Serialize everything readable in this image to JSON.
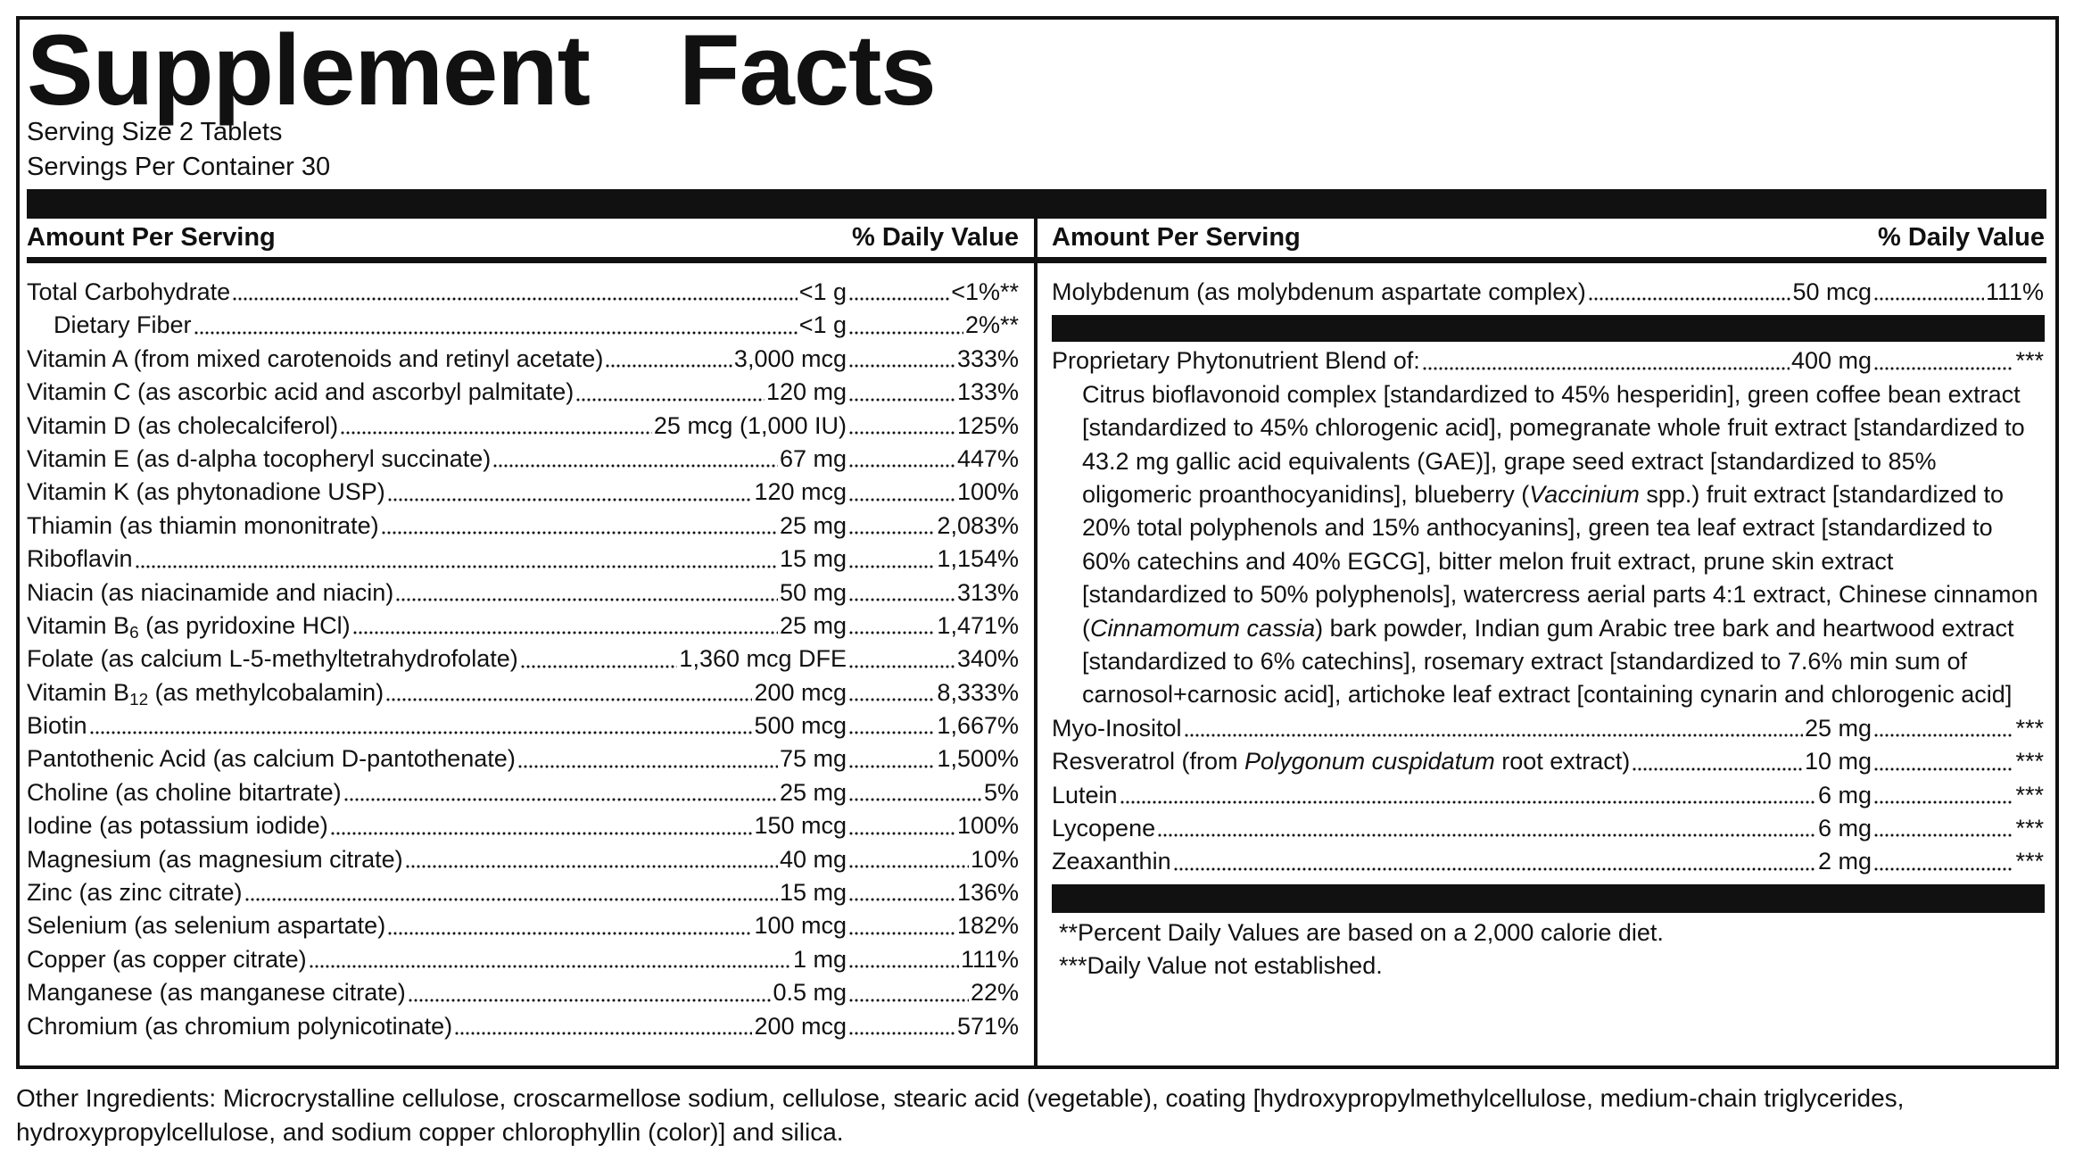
{
  "header": {
    "title": "Supplement Facts",
    "serving_size": "Serving Size 2 Tablets",
    "servings_per_container": "Servings Per Container 30"
  },
  "left": {
    "amount_label": "Amount Per Serving",
    "dv_label": "% Daily Value",
    "rows": [
      {
        "name": [
          "Total Carbohydrate"
        ],
        "amount": "<1 g",
        "dv": "<1%**"
      },
      {
        "name": [
          "Dietary Fiber"
        ],
        "amount": "<1 g",
        "dv": "2%**",
        "indent": true
      },
      {
        "name": [
          "Vitamin A (from mixed carotenoids and retinyl acetate)"
        ],
        "amount": "3,000 mcg",
        "dv": "333%"
      },
      {
        "name": [
          "Vitamin C (as ascorbic acid and ascorbyl palmitate)"
        ],
        "amount": "120 mg",
        "dv": "133%"
      },
      {
        "name": [
          "Vitamin D (as cholecalciferol)"
        ],
        "amount": "25 mcg (1,000 IU)",
        "dv": "125%"
      },
      {
        "name": [
          "Vitamin E (as d-alpha tocopheryl succinate)"
        ],
        "amount": "67 mg",
        "dv": "447%"
      },
      {
        "name": [
          "Vitamin K (as phytonadione USP)"
        ],
        "amount": "120 mcg",
        "dv": "100%"
      },
      {
        "name": [
          "Thiamin (as thiamin mononitrate)"
        ],
        "amount": "25 mg",
        "dv": "2,083%"
      },
      {
        "name": [
          "Riboflavin"
        ],
        "amount": "15 mg",
        "dv": "1,154%"
      },
      {
        "name": [
          "Niacin (as niacinamide and niacin)"
        ],
        "amount": "50 mg",
        "dv": "313%"
      },
      {
        "name": [
          "Vitamin B",
          {
            "text": "6",
            "style": "sub"
          },
          " (as pyridoxine HCl)"
        ],
        "amount": "25 mg",
        "dv": "1,471%"
      },
      {
        "name": [
          "Folate (as calcium L-5-methyltetrahydrofolate)"
        ],
        "amount": "1,360 mcg DFE",
        "dv": "340%"
      },
      {
        "name": [
          "Vitamin B",
          {
            "text": "12",
            "style": "sub"
          },
          " (as methylcobalamin)"
        ],
        "amount": "200 mcg",
        "dv": "8,333%"
      },
      {
        "name": [
          "Biotin"
        ],
        "amount": "500 mcg",
        "dv": "1,667%"
      },
      {
        "name": [
          "Pantothenic Acid (as calcium D-pantothenate)"
        ],
        "amount": "75 mg",
        "dv": "1,500%"
      },
      {
        "name": [
          "Choline (as choline bitartrate)"
        ],
        "amount": "25 mg",
        "dv": "5%"
      },
      {
        "name": [
          "Iodine (as potassium iodide)"
        ],
        "amount": "150 mcg",
        "dv": "100%"
      },
      {
        "name": [
          "Magnesium (as magnesium citrate)"
        ],
        "amount": "40 mg",
        "dv": "10%"
      },
      {
        "name": [
          "Zinc (as zinc citrate)"
        ],
        "amount": "15 mg",
        "dv": "136%"
      },
      {
        "name": [
          "Selenium (as selenium aspartate)"
        ],
        "amount": "100 mcg",
        "dv": "182%"
      },
      {
        "name": [
          "Copper (as copper citrate)"
        ],
        "amount": "1 mg",
        "dv": "111%"
      },
      {
        "name": [
          "Manganese (as manganese citrate)"
        ],
        "amount": "0.5 mg",
        "dv": "22%"
      },
      {
        "name": [
          "Chromium (as chromium polynicotinate)"
        ],
        "amount": "200 mcg",
        "dv": "571%"
      }
    ]
  },
  "right": {
    "amount_label": "Amount Per Serving",
    "dv_label": "% Daily Value",
    "rows_top": [
      {
        "name": [
          "Molybdenum (as molybdenum aspartate complex)"
        ],
        "amount": "50 mcg",
        "dv": "111%"
      }
    ],
    "blend": {
      "name": [
        "Proprietary Phytonutrient Blend of:"
      ],
      "amount": "400 mg",
      "dv": "***",
      "description": [
        "Citrus bioflavonoid complex [standardized to 45% hesperidin], green coffee bean extract [standardized to 45% chlorogenic acid], pomegranate whole fruit extract [standardized to 43.2 mg gallic acid equivalents (GAE)], grape seed extract [standardized to 85% oligomeric proanthocyanidins], blueberry (",
        {
          "text": "Vaccinium",
          "style": "italic"
        },
        " spp.) fruit extract [standardized to 20% total polyphenols and 15% anthocyanins], green tea leaf extract [standardized to 60% catechins and 40% EGCG], bitter melon fruit extract, prune skin extract [standardized to 50% polyphenols], watercress aerial parts 4:1 extract, Chinese cinnamon (",
        {
          "text": "Cinnamomum cassia",
          "style": "italic"
        },
        ") bark powder, Indian gum Arabic tree bark and heartwood extract [standardized to 6% catechins], rosemary extract [standardized to 7.6% min sum of carnosol+carnosic acid], artichoke leaf extract [containing cynarin and chlorogenic acid]"
      ]
    },
    "rows_bottom": [
      {
        "name": [
          "Myo-Inositol"
        ],
        "amount": "25 mg",
        "dv": "***"
      },
      {
        "name": [
          "Resveratrol (from ",
          {
            "text": "Polygonum cuspidatum",
            "style": "italic"
          },
          " root extract)"
        ],
        "amount": "10 mg",
        "dv": "***"
      },
      {
        "name": [
          "Lutein"
        ],
        "amount": "6 mg",
        "dv": "***"
      },
      {
        "name": [
          "Lycopene"
        ],
        "amount": "6 mg",
        "dv": "***"
      },
      {
        "name": [
          "Zeaxanthin"
        ],
        "amount": "2 mg",
        "dv": "***"
      }
    ],
    "footnotes": [
      "**Percent Daily Values are based on a 2,000 calorie diet.",
      "***Daily Value not established."
    ]
  },
  "other_ingredients": "Other Ingredients: Microcrystalline cellulose, croscarmellose sodium, cellulose, stearic acid (vegetable), coating [hydroxypropylmethylcellulose, medium-chain triglycerides, hydroxypropylcellulose, and sodium copper chlorophyllin (color)] and silica."
}
